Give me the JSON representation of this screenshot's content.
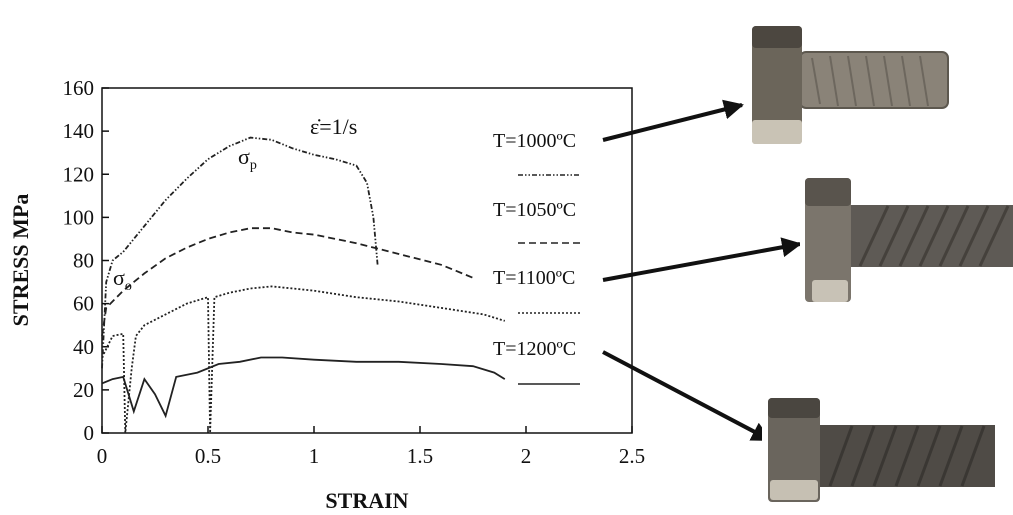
{
  "chart_data": {
    "type": "line",
    "title": "",
    "xlabel": "STRAIN",
    "ylabel": "STRESS MPa",
    "xlim": [
      0,
      2.5
    ],
    "ylim": [
      0,
      160
    ],
    "xticks": [
      "0",
      "0.5",
      "1",
      "1.5",
      "2",
      "2.5"
    ],
    "yticks": [
      "0",
      "20",
      "40",
      "60",
      "80",
      "100",
      "120",
      "140",
      "160"
    ],
    "grid": false,
    "legend_position": "right",
    "annotations": {
      "strain_rate": "ε̇=1/s",
      "peak_stress": "σp",
      "yield_stress": "σo"
    },
    "series": [
      {
        "name": "T=1000ºC",
        "line_style": "dash-dot-dot",
        "points": [
          [
            0.0,
            30
          ],
          [
            0.02,
            70
          ],
          [
            0.05,
            80
          ],
          [
            0.1,
            84
          ],
          [
            0.2,
            96
          ],
          [
            0.3,
            108
          ],
          [
            0.4,
            118
          ],
          [
            0.5,
            127
          ],
          [
            0.6,
            133
          ],
          [
            0.7,
            137
          ],
          [
            0.8,
            136
          ],
          [
            0.9,
            132
          ],
          [
            1.0,
            129
          ],
          [
            1.1,
            127
          ],
          [
            1.2,
            124
          ],
          [
            1.25,
            116
          ],
          [
            1.28,
            100
          ],
          [
            1.3,
            78
          ]
        ]
      },
      {
        "name": "T=1050ºC",
        "line_style": "dashed",
        "points": [
          [
            0.0,
            45
          ],
          [
            0.02,
            58
          ],
          [
            0.1,
            66
          ],
          [
            0.2,
            74
          ],
          [
            0.3,
            81
          ],
          [
            0.4,
            86
          ],
          [
            0.5,
            90
          ],
          [
            0.6,
            93
          ],
          [
            0.7,
            95
          ],
          [
            0.8,
            95
          ],
          [
            0.9,
            93
          ],
          [
            1.0,
            92
          ],
          [
            1.2,
            88
          ],
          [
            1.4,
            83
          ],
          [
            1.6,
            78
          ],
          [
            1.75,
            72
          ]
        ]
      },
      {
        "name": "T=1100ºC",
        "line_style": "dotted",
        "points": [
          [
            0.0,
            35
          ],
          [
            0.05,
            45
          ],
          [
            0.1,
            46
          ],
          [
            0.11,
            0
          ],
          [
            0.14,
            30
          ],
          [
            0.16,
            45
          ],
          [
            0.2,
            50
          ],
          [
            0.3,
            55
          ],
          [
            0.4,
            60
          ],
          [
            0.5,
            63
          ],
          [
            0.51,
            0
          ],
          [
            0.53,
            63
          ],
          [
            0.6,
            65
          ],
          [
            0.7,
            67
          ],
          [
            0.8,
            68
          ],
          [
            0.9,
            67
          ],
          [
            1.0,
            66
          ],
          [
            1.2,
            63
          ],
          [
            1.4,
            61
          ],
          [
            1.6,
            58
          ],
          [
            1.8,
            55
          ],
          [
            1.9,
            52
          ]
        ]
      },
      {
        "name": "T=1200ºC",
        "line_style": "solid",
        "points": [
          [
            0.0,
            23
          ],
          [
            0.05,
            25
          ],
          [
            0.1,
            26
          ],
          [
            0.15,
            10
          ],
          [
            0.2,
            25
          ],
          [
            0.25,
            18
          ],
          [
            0.3,
            8
          ],
          [
            0.35,
            26
          ],
          [
            0.45,
            28
          ],
          [
            0.55,
            32
          ],
          [
            0.65,
            33
          ],
          [
            0.75,
            35
          ],
          [
            0.85,
            35
          ],
          [
            1.0,
            34
          ],
          [
            1.2,
            33
          ],
          [
            1.4,
            33
          ],
          [
            1.6,
            32
          ],
          [
            1.75,
            31
          ],
          [
            1.85,
            28
          ],
          [
            1.9,
            25
          ]
        ]
      }
    ]
  },
  "legend": [
    "T=1000ºC",
    "T=1050ºC",
    "T=1100ºC",
    "T=1200ºC"
  ],
  "photos": [
    "specimen-1000",
    "specimen-1100",
    "specimen-1200"
  ]
}
